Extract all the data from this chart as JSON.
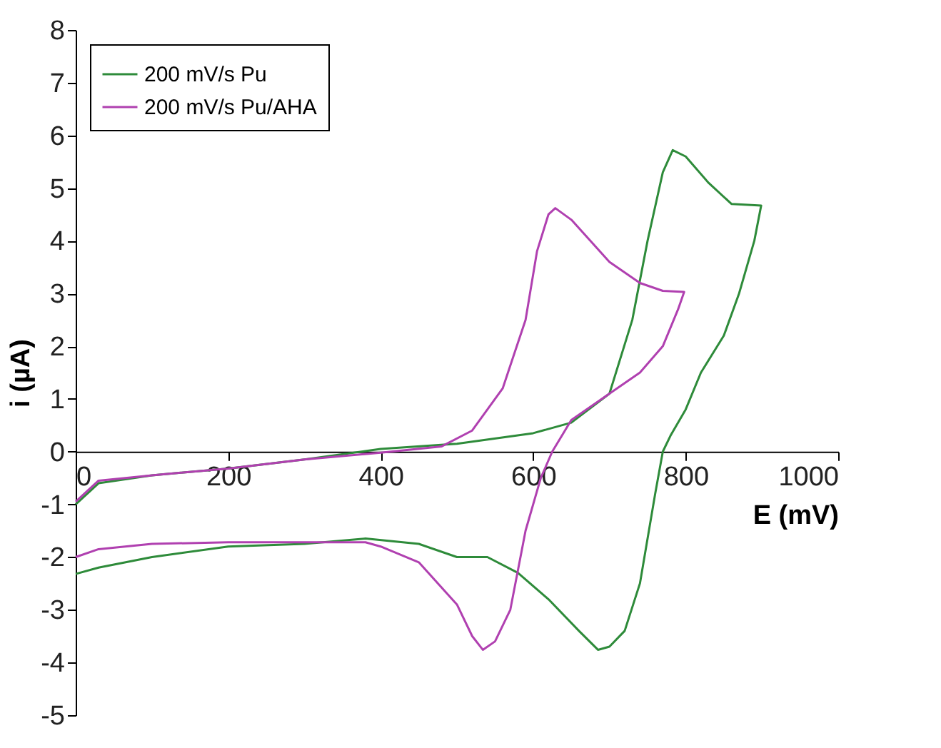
{
  "chart_data": {
    "type": "line",
    "xlabel": "E (mV)",
    "ylabel": "i (µA)",
    "xlim": [
      0,
      1000
    ],
    "xticks": [
      0,
      200,
      400,
      600,
      800,
      1000
    ],
    "ylim": [
      -5,
      8
    ],
    "yticks": [
      -5,
      -4,
      -3,
      -2,
      -1,
      0,
      1,
      2,
      3,
      4,
      5,
      6,
      7,
      8
    ],
    "grid": false,
    "legend": "top left",
    "marker": "none",
    "line_style": "solid",
    "series": [
      {
        "name": "200 mV/s  Pu",
        "color": "#2e8b3a",
        "x": [
          0,
          30,
          100,
          200,
          300,
          400,
          500,
          600,
          650,
          700,
          730,
          750,
          770,
          783,
          800,
          830,
          860,
          899,
          890,
          870,
          850,
          820,
          800,
          780,
          770,
          760,
          740,
          720,
          700,
          685,
          660,
          620,
          580,
          540,
          500,
          450,
          380,
          300,
          200,
          100,
          30,
          0
        ],
        "values": [
          -1.0,
          -0.6,
          -0.45,
          -0.32,
          -0.15,
          0.05,
          0.15,
          0.35,
          0.55,
          1.1,
          2.5,
          4.0,
          5.3,
          5.72,
          5.6,
          5.1,
          4.7,
          4.67,
          4.0,
          3.0,
          2.2,
          1.5,
          0.8,
          0.3,
          0.0,
          -0.8,
          -2.5,
          -3.4,
          -3.7,
          -3.76,
          -3.4,
          -2.8,
          -2.3,
          -2.0,
          -2.0,
          -1.75,
          -1.65,
          -1.75,
          -1.8,
          -2.0,
          -2.2,
          -2.32
        ]
      },
      {
        "name": "200 mV/s Pu/AHA",
        "color": "#b040b0",
        "x": [
          0,
          30,
          100,
          200,
          300,
          400,
          480,
          520,
          560,
          590,
          605,
          620,
          629,
          650,
          700,
          740,
          770,
          798,
          790,
          770,
          740,
          700,
          650,
          625,
          610,
          590,
          570,
          550,
          534,
          520,
          500,
          450,
          400,
          380,
          300,
          200,
          100,
          30,
          0
        ],
        "values": [
          -0.95,
          -0.55,
          -0.45,
          -0.32,
          -0.15,
          -0.02,
          0.1,
          0.4,
          1.2,
          2.5,
          3.8,
          4.5,
          4.62,
          4.4,
          3.6,
          3.2,
          3.05,
          3.03,
          2.7,
          2.0,
          1.5,
          1.1,
          0.6,
          0.0,
          -0.5,
          -1.5,
          -3.0,
          -3.6,
          -3.76,
          -3.5,
          -2.9,
          -2.1,
          -1.8,
          -1.72,
          -1.72,
          -1.72,
          -1.75,
          -1.85,
          -2.0
        ]
      }
    ]
  }
}
